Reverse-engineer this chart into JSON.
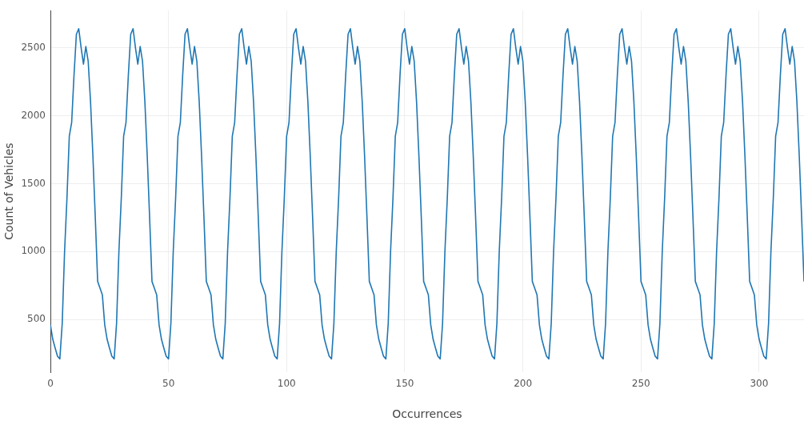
{
  "chart_data": {
    "type": "line",
    "xlabel": "Occurrences",
    "ylabel": "Count of Vehicles",
    "xlim": [
      0,
      319
    ],
    "xticks": [
      0,
      50,
      100,
      150,
      200,
      250,
      300
    ],
    "ylim": [
      112,
      2774
    ],
    "yticks": [
      500,
      1000,
      1500,
      2000,
      2500
    ],
    "grid": true,
    "legend": false,
    "marker": "none",
    "line_style": "solid",
    "series": [
      {
        "color": "#1f77b4",
        "x": [
          0,
          1,
          2,
          3,
          4,
          5,
          6,
          7,
          8,
          9,
          10,
          11,
          12,
          13,
          14,
          15,
          16,
          17,
          18,
          19,
          20,
          21,
          22,
          23,
          24,
          25,
          26,
          27,
          28,
          29,
          30,
          31,
          32,
          33,
          34,
          35,
          36,
          37,
          38,
          39,
          40,
          41,
          42,
          43,
          44,
          45,
          46,
          47,
          48,
          49,
          50,
          51,
          52,
          53,
          54,
          55,
          56,
          57,
          58,
          59,
          60,
          61,
          62,
          63,
          64,
          65,
          66,
          67,
          68,
          69,
          70,
          71,
          72,
          73,
          74,
          75,
          76,
          77,
          78,
          79,
          80,
          81,
          82,
          83,
          84,
          85,
          86,
          87,
          88,
          89,
          90,
          91,
          92,
          93,
          94,
          95,
          96,
          97,
          98,
          99,
          100,
          101,
          102,
          103,
          104,
          105,
          106,
          107,
          108,
          109,
          110,
          111,
          112,
          113,
          114,
          115,
          116,
          117,
          118,
          119,
          120,
          121,
          122,
          123,
          124,
          125,
          126,
          127,
          128,
          129,
          130,
          131,
          132,
          133,
          134,
          135,
          136,
          137,
          138,
          139,
          140,
          141,
          142,
          143,
          144,
          145,
          146,
          147,
          148,
          149,
          150,
          151,
          152,
          153,
          154,
          155,
          156,
          157,
          158,
          159,
          160,
          161,
          162,
          163,
          164,
          165,
          166,
          167,
          168,
          169,
          170,
          171,
          172,
          173,
          174,
          175,
          176,
          177,
          178,
          179,
          180,
          181,
          182,
          183,
          184,
          185,
          186,
          187,
          188,
          189,
          190,
          191,
          192,
          193,
          194,
          195,
          196,
          197,
          198,
          199,
          200,
          201,
          202,
          203,
          204,
          205,
          206,
          207,
          208,
          209,
          210,
          211,
          212,
          213,
          214,
          215,
          216,
          217,
          218,
          219,
          220,
          221,
          222,
          223,
          224,
          225,
          226,
          227,
          228,
          229,
          230,
          231,
          232,
          233,
          234,
          235,
          236,
          237,
          238,
          239,
          240,
          241,
          242,
          243,
          244,
          245,
          246,
          247,
          248,
          249,
          250,
          251,
          252,
          253,
          254,
          255,
          256,
          257,
          258,
          259,
          260,
          261,
          262,
          263,
          264,
          265,
          266,
          267,
          268,
          269,
          270,
          271,
          272,
          273,
          274,
          275,
          276,
          277,
          278,
          279,
          280,
          281,
          282,
          283,
          284,
          285,
          286,
          287,
          288,
          289,
          290,
          291,
          292,
          293,
          294,
          295,
          296,
          297,
          298,
          299,
          300,
          301,
          302,
          303,
          304,
          305,
          306,
          307,
          308,
          309,
          310,
          311,
          312,
          313,
          314,
          315,
          316,
          317,
          318,
          319
        ],
        "values": [
          460,
          355,
          290,
          230,
          210,
          470,
          1000,
          1390,
          1850,
          1950,
          2300,
          2600,
          2640,
          2500,
          2380,
          2510,
          2400,
          2100,
          1700,
          1250,
          780,
          730,
          680,
          460,
          355,
          290,
          230,
          210,
          470,
          1000,
          1390,
          1850,
          1950,
          2300,
          2600,
          2640,
          2500,
          2380,
          2510,
          2400,
          2100,
          1700,
          1250,
          780,
          730,
          680,
          460,
          355,
          290,
          230,
          210,
          470,
          1000,
          1390,
          1850,
          1950,
          2300,
          2600,
          2640,
          2500,
          2380,
          2510,
          2400,
          2100,
          1700,
          1250,
          780,
          730,
          680,
          460,
          355,
          290,
          230,
          210,
          470,
          1000,
          1390,
          1850,
          1950,
          2300,
          2600,
          2640,
          2500,
          2380,
          2510,
          2400,
          2100,
          1700,
          1250,
          780,
          730,
          680,
          460,
          355,
          290,
          230,
          210,
          470,
          1000,
          1390,
          1850,
          1950,
          2300,
          2600,
          2640,
          2500,
          2380,
          2510,
          2400,
          2100,
          1700,
          1250,
          780,
          730,
          680,
          460,
          355,
          290,
          230,
          210,
          470,
          1000,
          1390,
          1850,
          1950,
          2300,
          2600,
          2640,
          2500,
          2380,
          2510,
          2400,
          2100,
          1700,
          1250,
          780,
          730,
          680,
          460,
          355,
          290,
          230,
          210,
          470,
          1000,
          1390,
          1850,
          1950,
          2300,
          2600,
          2640,
          2500,
          2380,
          2510,
          2400,
          2100,
          1700,
          1250,
          780,
          730,
          680,
          460,
          355,
          290,
          230,
          210,
          470,
          1000,
          1390,
          1850,
          1950,
          2300,
          2600,
          2640,
          2500,
          2380,
          2510,
          2400,
          2100,
          1700,
          1250,
          780,
          730,
          680,
          460,
          355,
          290,
          230,
          210,
          470,
          1000,
          1390,
          1850,
          1950,
          2300,
          2600,
          2640,
          2500,
          2380,
          2510,
          2400,
          2100,
          1700,
          1250,
          780,
          730,
          680,
          460,
          355,
          290,
          230,
          210,
          470,
          1000,
          1390,
          1850,
          1950,
          2300,
          2600,
          2640,
          2500,
          2380,
          2510,
          2400,
          2100,
          1700,
          1250,
          780,
          730,
          680,
          460,
          355,
          290,
          230,
          210,
          470,
          1000,
          1390,
          1850,
          1950,
          2300,
          2600,
          2640,
          2500,
          2380,
          2510,
          2400,
          2100,
          1700,
          1250,
          780,
          730,
          680,
          460,
          355,
          290,
          230,
          210,
          470,
          1000,
          1390,
          1850,
          1950,
          2300,
          2600,
          2640,
          2500,
          2380,
          2510,
          2400,
          2100,
          1700,
          1250,
          780,
          730,
          680,
          460,
          355,
          290,
          230,
          210,
          470,
          1000,
          1390,
          1850,
          1950,
          2300,
          2600,
          2640,
          2500,
          2380,
          2510,
          2400,
          2100,
          1700,
          1250,
          780,
          730,
          680,
          460,
          355,
          290,
          230,
          210,
          470,
          1000,
          1390,
          1850,
          1950,
          2300,
          2600,
          2640,
          2500,
          2380,
          2510,
          2400,
          2100,
          1700,
          1250,
          780
        ]
      }
    ]
  }
}
